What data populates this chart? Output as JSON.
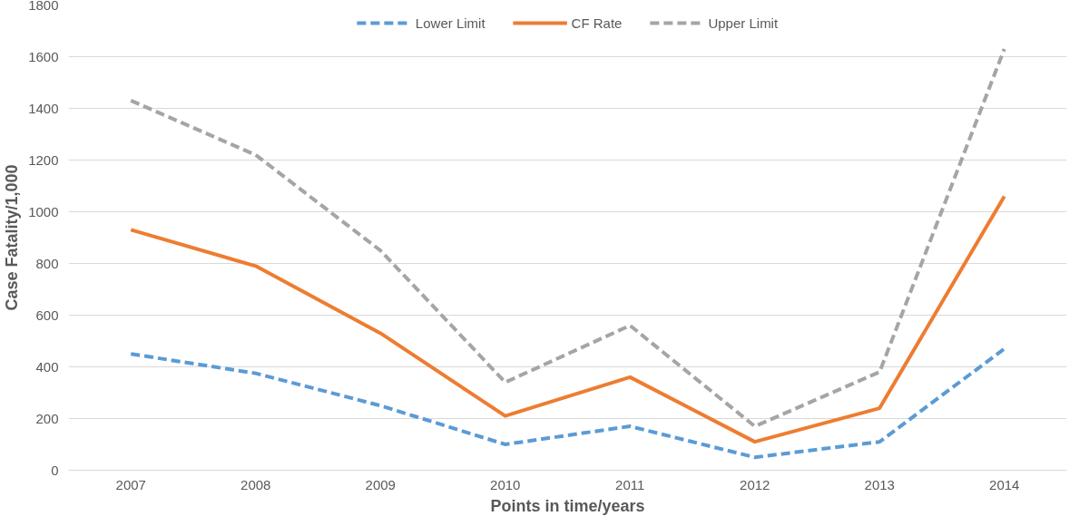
{
  "chart_data": {
    "type": "line",
    "xlabel": "Points in time/years",
    "ylabel": "Case Fatality/1,000",
    "categories": [
      "2007",
      "2008",
      "2009",
      "2010",
      "2011",
      "2012",
      "2013",
      "2014"
    ],
    "series": [
      {
        "name": "Lower Limit",
        "color": "#5b9bd5",
        "line_style": "dashed",
        "values": [
          450,
          375,
          250,
          100,
          170,
          50,
          110,
          470
        ]
      },
      {
        "name": "CF Rate",
        "color": "#ed7d31",
        "line_style": "solid",
        "values": [
          930,
          790,
          530,
          210,
          360,
          110,
          240,
          1060
        ]
      },
      {
        "name": "Upper Limit",
        "color": "#a5a5a5",
        "line_style": "dashed",
        "values": [
          1430,
          1220,
          850,
          340,
          560,
          170,
          380,
          1630
        ]
      }
    ],
    "ylim": [
      0,
      1800
    ],
    "yticks": [
      0,
      200,
      400,
      600,
      800,
      1000,
      1200,
      1400,
      1600,
      1800
    ],
    "grid": "y",
    "legend": "top",
    "marker": "none"
  }
}
